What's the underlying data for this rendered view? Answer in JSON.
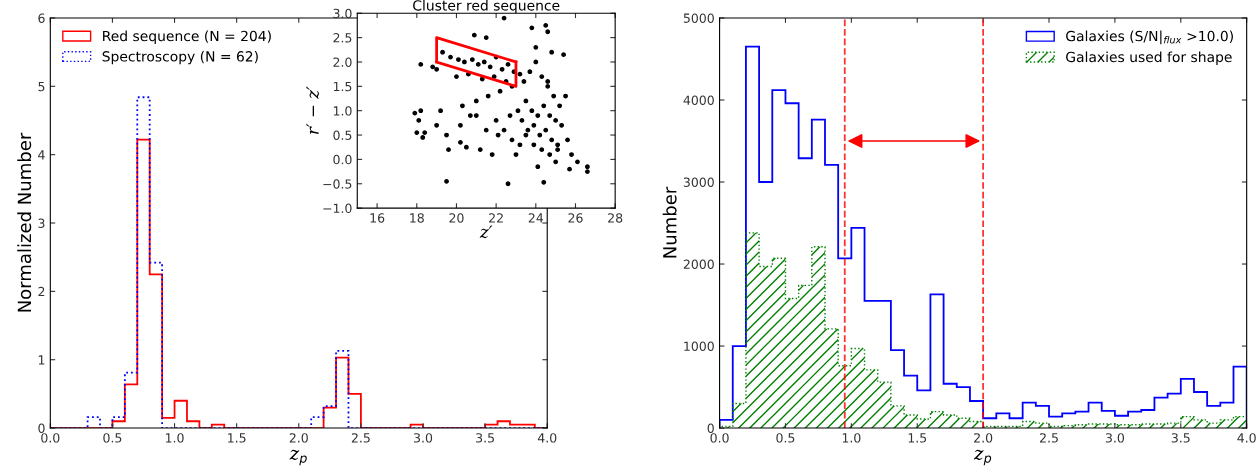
{
  "chart_data": [
    {
      "type": "histogram",
      "xlabel": "z$_{p}$",
      "ylabel": "Normalized Number",
      "bins": [
        0.0,
        0.1,
        0.2,
        0.3,
        0.4,
        0.5,
        0.6,
        0.7,
        0.8,
        0.9,
        1.0,
        1.1,
        1.2,
        1.3,
        1.4,
        1.5,
        1.6,
        1.7,
        1.8,
        1.9,
        2.0,
        2.1,
        2.2,
        2.3,
        2.4,
        2.5,
        2.6,
        2.7,
        2.8,
        2.9,
        3.0,
        3.1,
        3.2,
        3.3,
        3.4,
        3.5,
        3.6,
        3.7,
        3.8,
        3.9,
        4.0
      ],
      "series": [
        {
          "name": "Red sequence (N = 204)",
          "color": "#ff0000",
          "line_style": "solid",
          "values": [
            0,
            0,
            0,
            0,
            0,
            0.1,
            0.64,
            4.22,
            2.25,
            0.15,
            0.4,
            0.1,
            0,
            0.05,
            0,
            0,
            0,
            0,
            0,
            0,
            0,
            0,
            0.3,
            1.03,
            0.5,
            0,
            0,
            0,
            0,
            0.05,
            0,
            0,
            0,
            0,
            0,
            0.05,
            0.1,
            0.05,
            0.05,
            0
          ]
        },
        {
          "name": "Spectroscopy (N = 62)",
          "color": "#0000ff",
          "line_style": "dotted",
          "values": [
            0,
            0,
            0,
            0.16,
            0,
            0.16,
            0.81,
            4.84,
            2.42,
            0,
            0,
            0,
            0,
            0,
            0,
            0,
            0,
            0,
            0,
            0,
            0,
            0.16,
            0.32,
            1.13,
            0,
            0,
            0,
            0,
            0,
            0,
            0,
            0,
            0,
            0,
            0,
            0,
            0,
            0,
            0,
            0
          ]
        }
      ],
      "xlim": [
        0,
        4
      ],
      "xticks": [
        {
          "value": 0,
          "label": "0.0"
        },
        {
          "value": 0.5,
          "label": "0.5"
        },
        {
          "value": 1,
          "label": "1.0"
        },
        {
          "value": 1.5,
          "label": "1.5"
        },
        {
          "value": 2,
          "label": "2.0"
        },
        {
          "value": 2.5,
          "label": "2.5"
        },
        {
          "value": 3,
          "label": "3.0"
        },
        {
          "value": 3.5,
          "label": "3.5"
        },
        {
          "value": 4,
          "label": "4.0"
        }
      ],
      "ylim": [
        0,
        6
      ],
      "yticks": [
        0,
        1,
        2,
        3,
        4,
        5,
        6
      ],
      "legend": "top left",
      "grid": false
    },
    {
      "type": "scatter",
      "title": "Cluster red sequence",
      "xlabel": "z′",
      "ylabel": "r′ − z′",
      "series": [
        {
          "type": "scatter",
          "color": "#000000",
          "marker": "circle",
          "x": [
            17.9,
            18.0,
            18.1,
            18.2,
            18.3,
            18.4,
            18.2,
            18.8,
            19.0,
            19.5,
            22.6,
            24.4,
            26.6,
            26.6,
            22.4,
            23.8,
            24.5,
            24.6,
            20.9,
            21.5,
            25.4,
            19.0,
            19.2,
            19.5,
            19.6,
            20.2,
            20.5,
            21.2,
            21.8,
            23.0,
            24.1,
            25.0,
            25.6,
            25.8,
            26.1,
            25.7,
            19.3,
            19.7,
            20.1,
            20.4,
            20.8,
            21.1,
            21.4,
            21.7,
            22.0,
            22.3,
            22.6,
            22.9,
            20.0,
            20.6,
            21.3,
            21.9,
            22.5,
            23.2,
            20.3,
            21.0,
            21.6,
            22.2,
            22.8,
            23.4,
            23.7,
            24.0,
            24.3,
            24.6,
            24.9,
            25.2,
            23.5,
            23.8,
            24.1,
            24.4,
            24.7,
            25.0,
            25.3,
            23.3,
            23.6,
            23.9,
            24.2,
            24.5,
            24.8,
            25.1,
            22.7,
            23.1,
            23.5,
            23.9,
            24.3,
            24.7,
            25.1,
            22.0,
            22.4,
            22.8,
            23.2,
            24.0,
            24.8,
            21.0,
            21.5,
            22.1,
            20.2,
            20.7,
            24.6,
            25.5
          ],
          "values": [
            0.95,
            0.55,
            0.8,
            1.0,
            0.45,
            0.55,
            1.95,
            1.9,
            1.85,
            -0.45,
            -0.5,
            -0.47,
            -0.25,
            -0.15,
            2.9,
            2.7,
            2.75,
            2.62,
            2.55,
            2.5,
            2.15,
            0.7,
            1.0,
            0.5,
            0.2,
            0.35,
            0.25,
            0.2,
            0.1,
            0.1,
            -0.15,
            -0.05,
            0.4,
            0.1,
            -0.05,
            -0.2,
            2.2,
            2.1,
            2.05,
            2.0,
            2.05,
            1.95,
            2.0,
            1.9,
            2.1,
            1.85,
            1.95,
            1.8,
            1.7,
            1.75,
            1.65,
            1.7,
            1.6,
            1.75,
            1.1,
            1.2,
            1.3,
            1.4,
            1.5,
            1.6,
            1.8,
            2.0,
            1.7,
            1.5,
            1.3,
            1.1,
            1.2,
            1.0,
            0.9,
            1.1,
            0.9,
            0.8,
            0.7,
            0.8,
            0.6,
            0.7,
            0.5,
            0.6,
            0.4,
            0.3,
            0.9,
            1.0,
            0.5,
            0.3,
            0.2,
            0.1,
            0.2,
            0.8,
            0.6,
            0.4,
            0.3,
            2.3,
            2.2,
            0.9,
            0.6,
            0.5,
            0.7,
            0.9,
            1.6,
            1.3
          ]
        },
        {
          "type": "line",
          "color": "#ff0000",
          "line_style": "solid",
          "marker": "none",
          "x": [
            19,
            19,
            23
          ],
          "values": [
            2.0,
            2.5,
            2.0
          ]
        },
        {
          "type": "line",
          "color": "#ff0000",
          "line_style": "solid",
          "marker": "none",
          "x": [
            19,
            23,
            23
          ],
          "values": [
            2.0,
            1.5,
            2.0
          ]
        }
      ],
      "xlim": [
        15,
        28
      ],
      "xticks": [
        16,
        18,
        20,
        22,
        24,
        26,
        28
      ],
      "ylim": [
        -1,
        3
      ],
      "yticks": [
        {
          "value": -1,
          "label": "−1.0"
        },
        {
          "value": -0.5,
          "label": "−0.5"
        },
        {
          "value": 0,
          "label": "0.0"
        },
        {
          "value": 0.5,
          "label": "0.5"
        },
        {
          "value": 1,
          "label": "1.0"
        },
        {
          "value": 1.5,
          "label": "1.5"
        },
        {
          "value": 2,
          "label": "2.0"
        },
        {
          "value": 2.5,
          "label": "2.5"
        },
        {
          "value": 3,
          "label": "3.0"
        }
      ],
      "grid": false
    },
    {
      "type": "histogram",
      "xlabel": "z$_{p}$",
      "ylabel": "Number",
      "bins": [
        0.0,
        0.1,
        0.2,
        0.3,
        0.4,
        0.5,
        0.6,
        0.7,
        0.8,
        0.9,
        1.0,
        1.1,
        1.2,
        1.3,
        1.4,
        1.5,
        1.6,
        1.7,
        1.8,
        1.9,
        2.0,
        2.1,
        2.2,
        2.3,
        2.4,
        2.5,
        2.6,
        2.7,
        2.8,
        2.9,
        3.0,
        3.1,
        3.2,
        3.3,
        3.4,
        3.5,
        3.6,
        3.7,
        3.8,
        3.9,
        4.0
      ],
      "series": [
        {
          "name": "Galaxies (S/N|$_{flux}$ >10.0)",
          "color": "#0000ff",
          "line_style": "solid",
          "values": [
            100,
            1000,
            4650,
            3000,
            4120,
            3960,
            3290,
            3760,
            3210,
            2070,
            2440,
            1550,
            1550,
            950,
            640,
            460,
            1630,
            540,
            500,
            330,
            120,
            180,
            120,
            310,
            270,
            140,
            180,
            200,
            310,
            210,
            150,
            200,
            220,
            370,
            420,
            600,
            440,
            270,
            310,
            750
          ]
        },
        {
          "name": "Galaxies used for shape",
          "color": "#008000",
          "line_style": "dotted",
          "values": [
            20,
            300,
            2380,
            1970,
            2070,
            1580,
            1740,
            2210,
            1210,
            760,
            970,
            710,
            560,
            270,
            160,
            110,
            200,
            160,
            120,
            80,
            20,
            20,
            20,
            80,
            60,
            20,
            30,
            40,
            50,
            50,
            40,
            40,
            50,
            50,
            60,
            140,
            100,
            60,
            100,
            140
          ]
        }
      ],
      "ref_lines": [
        {
          "axis": "x",
          "value": 0.95,
          "color": "#ff0000",
          "line_style": "dashed"
        },
        {
          "axis": "x",
          "value": 2.0,
          "color": "#ff0000",
          "line_style": "dashed"
        }
      ],
      "xlim": [
        0,
        4
      ],
      "xticks": [
        {
          "value": 0,
          "label": "0.0"
        },
        {
          "value": 0.5,
          "label": "0.5"
        },
        {
          "value": 1,
          "label": "1.0"
        },
        {
          "value": 1.5,
          "label": "1.5"
        },
        {
          "value": 2,
          "label": "2.0"
        },
        {
          "value": 2.5,
          "label": "2.5"
        },
        {
          "value": 3,
          "label": "3.0"
        },
        {
          "value": 3.5,
          "label": "3.5"
        },
        {
          "value": 4,
          "label": "4.0"
        }
      ],
      "ylim": [
        0,
        5000
      ],
      "yticks": [
        0,
        1000,
        2000,
        3000,
        4000,
        5000
      ],
      "legend": "top right",
      "grid": false
    }
  ]
}
